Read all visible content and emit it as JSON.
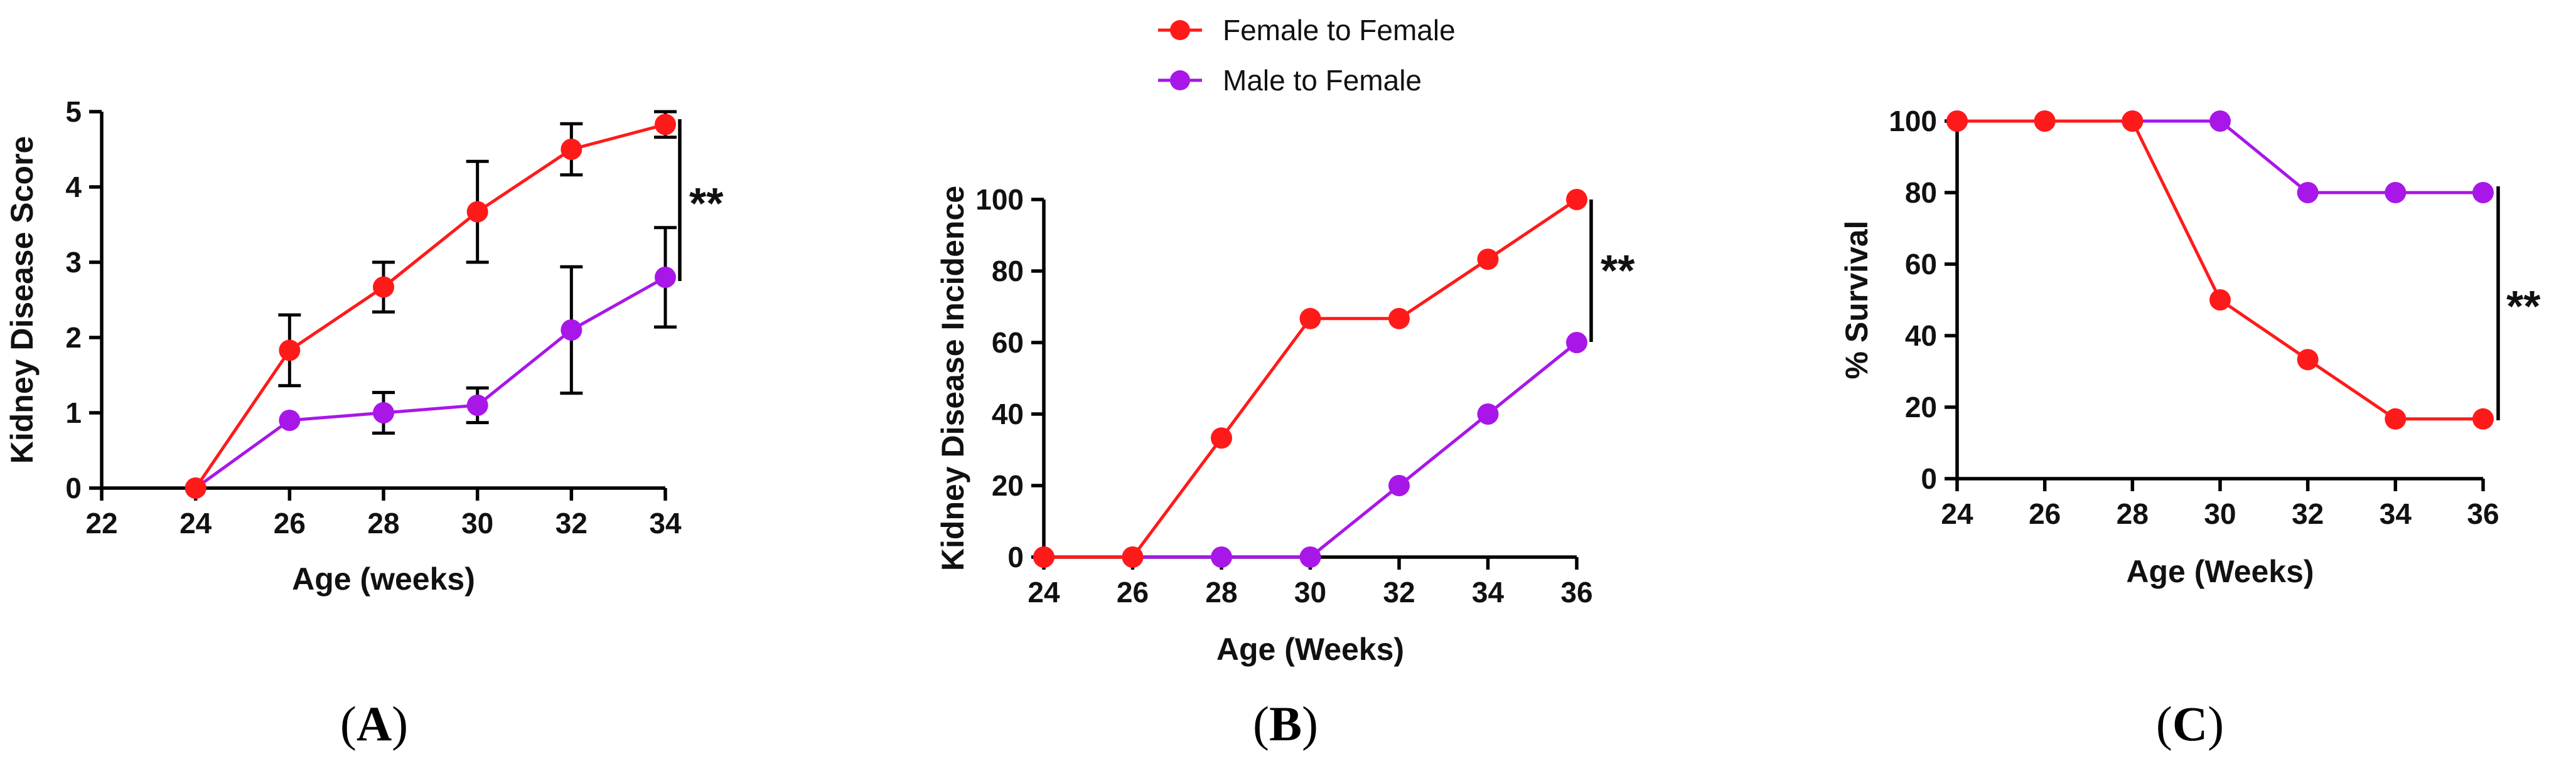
{
  "legend": [
    {
      "name": "Female to Female",
      "color": "#ff1a1a"
    },
    {
      "name": "Male to Female",
      "color": "#a817e8"
    }
  ],
  "chart_data": [
    {
      "type": "line",
      "panel_label": "(A)",
      "xlabel": "Age (weeks)",
      "ylabel": "Kidney Disease Score",
      "xlim": [
        22,
        34
      ],
      "ylim": [
        0,
        5
      ],
      "xticks": [
        22,
        24,
        26,
        28,
        30,
        32,
        34
      ],
      "yticks": [
        0,
        1,
        2,
        3,
        4,
        5
      ],
      "significance": "**",
      "series": [
        {
          "name": "Female to Female",
          "color": "#ff1a1a",
          "x": [
            24,
            26,
            28,
            30,
            32,
            34
          ],
          "values": [
            0,
            1.83,
            2.67,
            3.67,
            4.5,
            4.83
          ],
          "error": [
            0,
            0.47,
            0.33,
            0.67,
            0.34,
            0.17
          ]
        },
        {
          "name": "Male to Female",
          "color": "#a817e8",
          "x": [
            24,
            26,
            28,
            30,
            32,
            34
          ],
          "values": [
            0,
            0.9,
            1.0,
            1.1,
            2.1,
            2.8
          ],
          "error": [
            0,
            0,
            0.27,
            0.23,
            0.84,
            0.66
          ]
        }
      ]
    },
    {
      "type": "line",
      "panel_label": "(B)",
      "xlabel": "Age (Weeks)",
      "ylabel": "Kidney Disease Incidence",
      "xlim": [
        24,
        36
      ],
      "ylim": [
        0,
        100
      ],
      "xticks": [
        24,
        26,
        28,
        30,
        32,
        34,
        36
      ],
      "yticks": [
        0,
        20,
        40,
        60,
        80,
        100
      ],
      "significance": "**",
      "series": [
        {
          "name": "Female to Female",
          "color": "#ff1a1a",
          "x": [
            24,
            26,
            28,
            30,
            32,
            34,
            36
          ],
          "values": [
            0,
            0,
            33.3,
            66.7,
            66.7,
            83.3,
            100
          ]
        },
        {
          "name": "Male to Female",
          "color": "#a817e8",
          "x": [
            24,
            26,
            28,
            30,
            32,
            34,
            36
          ],
          "values": [
            0,
            0,
            0,
            0,
            20,
            40,
            60
          ]
        }
      ]
    },
    {
      "type": "line",
      "panel_label": "(C)",
      "xlabel": "Age (Weeks)",
      "ylabel": "% Survival",
      "xlim": [
        24,
        36
      ],
      "ylim": [
        0,
        100
      ],
      "xticks": [
        24,
        26,
        28,
        30,
        32,
        34,
        36
      ],
      "yticks": [
        0,
        20,
        40,
        60,
        80,
        100
      ],
      "significance": "**",
      "series": [
        {
          "name": "Female to Female",
          "color": "#ff1a1a",
          "x": [
            24,
            26,
            28,
            30,
            32,
            34,
            36
          ],
          "values": [
            100,
            100,
            100,
            50,
            33.3,
            16.7,
            16.7
          ]
        },
        {
          "name": "Male to Female",
          "color": "#a817e8",
          "x": [
            24,
            26,
            28,
            30,
            32,
            34,
            36
          ],
          "values": [
            100,
            100,
            100,
            100,
            80,
            80,
            80
          ]
        }
      ]
    }
  ]
}
